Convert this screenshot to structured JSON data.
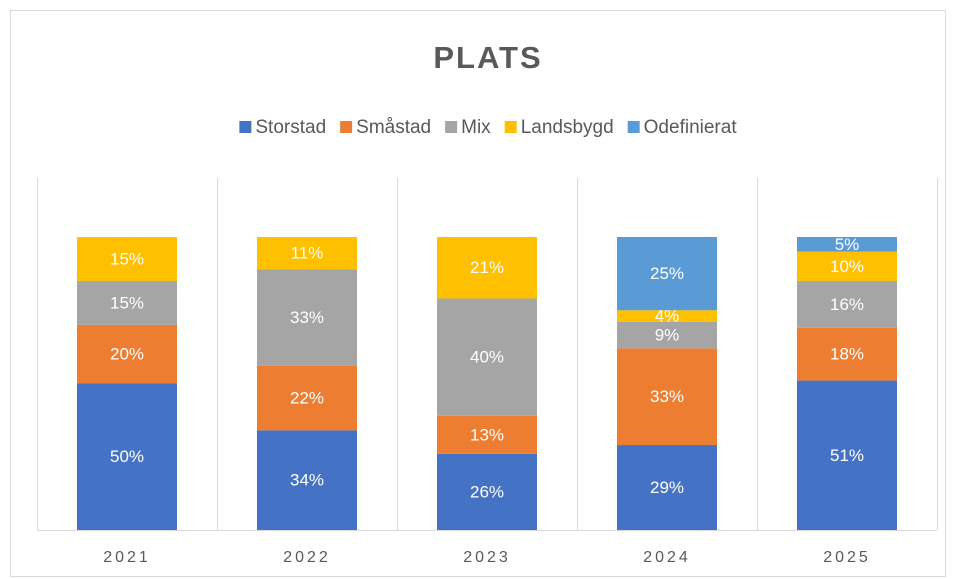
{
  "chart_data": {
    "type": "stacked_bar",
    "title": "PLATS",
    "categories": [
      "2021",
      "2022",
      "2023",
      "2024",
      "2025"
    ],
    "series": [
      {
        "name": "Storstad",
        "color": "#4472c4",
        "values": [
          50,
          34,
          26,
          29,
          51
        ],
        "value_labels": [
          "50%",
          "34%",
          "26%",
          "29%",
          "51%"
        ]
      },
      {
        "name": "Småstad",
        "color": "#ed7d31",
        "values": [
          20,
          22,
          13,
          33,
          18
        ],
        "value_labels": [
          "20%",
          "22%",
          "13%",
          "33%",
          "18%"
        ]
      },
      {
        "name": "Mix",
        "color": "#a5a5a5",
        "values": [
          15,
          33,
          40,
          9,
          16
        ],
        "value_labels": [
          "15%",
          "33%",
          "40%",
          "9%",
          "16%"
        ]
      },
      {
        "name": "Landsbygd",
        "color": "#ffc000",
        "values": [
          15,
          11,
          21,
          4,
          10
        ],
        "value_labels": [
          "15%",
          "11%",
          "21%",
          "4%",
          "10%"
        ]
      },
      {
        "name": "Odefinierat",
        "color": "#5b9bd5",
        "values": [
          null,
          null,
          null,
          25,
          5
        ],
        "value_labels": [
          null,
          null,
          null,
          "25%",
          "5%"
        ]
      }
    ],
    "ylim": [
      0,
      100
    ],
    "legend": "top"
  }
}
